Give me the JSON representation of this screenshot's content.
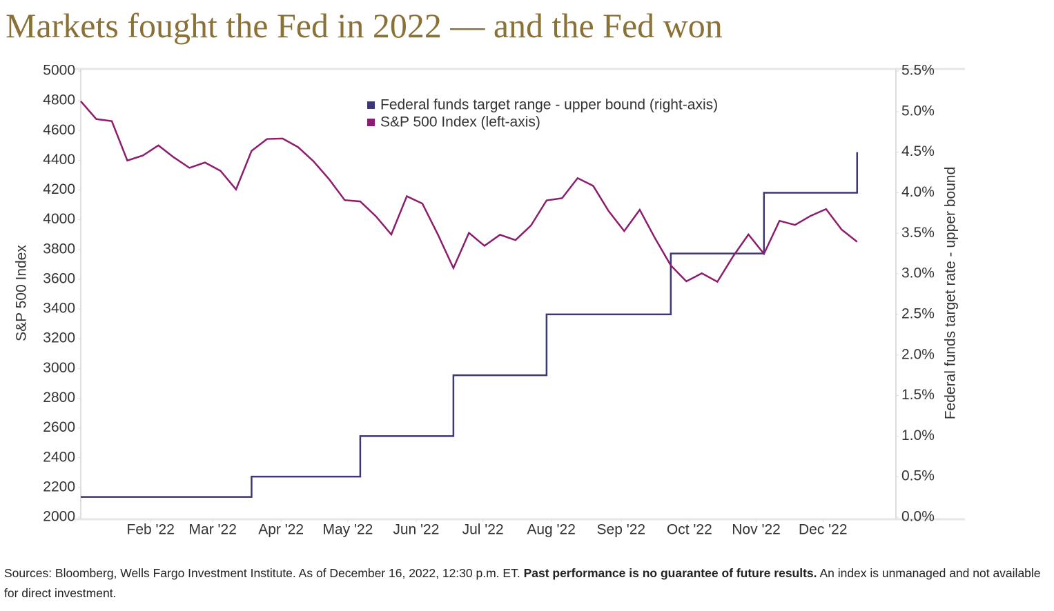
{
  "chart_data": {
    "type": "line",
    "title": "Markets fought the Fed in 2022 — and the Fed won",
    "ylabel": "S&P 500 Index",
    "y2label": "Federal funds target rate - upper bound",
    "xlim": [
      0,
      52.5
    ],
    "xticks": [
      {
        "value": 4.5,
        "label": "Feb '22"
      },
      {
        "value": 8.5,
        "label": "Mar '22"
      },
      {
        "value": 12.9,
        "label": "Apr '22"
      },
      {
        "value": 17.2,
        "label": "May '22"
      },
      {
        "value": 21.6,
        "label": "Jun '22"
      },
      {
        "value": 25.9,
        "label": "Jul '22"
      },
      {
        "value": 30.3,
        "label": "Aug '22"
      },
      {
        "value": 34.8,
        "label": "Sep '22"
      },
      {
        "value": 39.2,
        "label": "Oct '22"
      },
      {
        "value": 43.5,
        "label": "Nov '22"
      },
      {
        "value": 47.8,
        "label": "Dec '22"
      }
    ],
    "ylim": [
      2000,
      5000
    ],
    "yticks": [
      2000,
      2200,
      2400,
      2600,
      2800,
      3000,
      3200,
      3400,
      3600,
      3800,
      4000,
      4200,
      4400,
      4600,
      4800,
      5000
    ],
    "y2lim": [
      0,
      5.5
    ],
    "y2ticks": [
      {
        "value": 0,
        "label": "0.0%"
      },
      {
        "value": 0.5,
        "label": "0.5%"
      },
      {
        "value": 1,
        "label": "1.0%"
      },
      {
        "value": 1.5,
        "label": "1.5%"
      },
      {
        "value": 2,
        "label": "2.0%"
      },
      {
        "value": 2.5,
        "label": "2.5%"
      },
      {
        "value": 3,
        "label": "3.0%"
      },
      {
        "value": 3.5,
        "label": "3.5%"
      },
      {
        "value": 4,
        "label": "4.0%"
      },
      {
        "value": 4.5,
        "label": "4.5%"
      },
      {
        "value": 5,
        "label": "5.0%"
      },
      {
        "value": 5.5,
        "label": "5.5%"
      }
    ],
    "grid": false,
    "series": [
      {
        "name": "Federal funds target range - upper bound (right-axis)",
        "color": "#3b3778",
        "axis": "y2",
        "step": true,
        "values": [
          0.25,
          0.25,
          0.25,
          0.25,
          0.25,
          0.25,
          0.25,
          0.25,
          0.25,
          0.25,
          0.25,
          0.5,
          0.5,
          0.5,
          0.5,
          0.5,
          0.5,
          0.5,
          1,
          1,
          1,
          1,
          1,
          1,
          1.75,
          1.75,
          1.75,
          1.75,
          1.75,
          1.75,
          2.5,
          2.5,
          2.5,
          2.5,
          2.5,
          2.5,
          2.5,
          2.5,
          3.25,
          3.25,
          3.25,
          3.25,
          3.25,
          3.25,
          4,
          4,
          4,
          4,
          4,
          4,
          4.5
        ]
      },
      {
        "name": "S&P 500 Index (left-axis)",
        "color": "#8c1c6e",
        "values": [
          4797,
          4677,
          4663,
          4398,
          4432,
          4500,
          4419,
          4349,
          4385,
          4329,
          4204,
          4463,
          4543,
          4546,
          4488,
          4392,
          4272,
          4132,
          4123,
          4024,
          3901,
          4158,
          4109,
          3901,
          3675,
          3912,
          3825,
          3899,
          3863,
          3962,
          4130,
          4145,
          4280,
          4228,
          4058,
          3924,
          4067,
          3873,
          3693,
          3586,
          3640,
          3583,
          3752,
          3901,
          3771,
          3993,
          3965,
          4026,
          4072,
          3934,
          3852
        ]
      }
    ],
    "notes": [
      "Sources: Bloomberg, Wells Fargo Investment Institute. As of December 16, 2022, 12:30 p.m. ET.",
      "Past performance is no guarantee of future results.",
      "An index is unmanaged and not available for direct investment."
    ]
  }
}
